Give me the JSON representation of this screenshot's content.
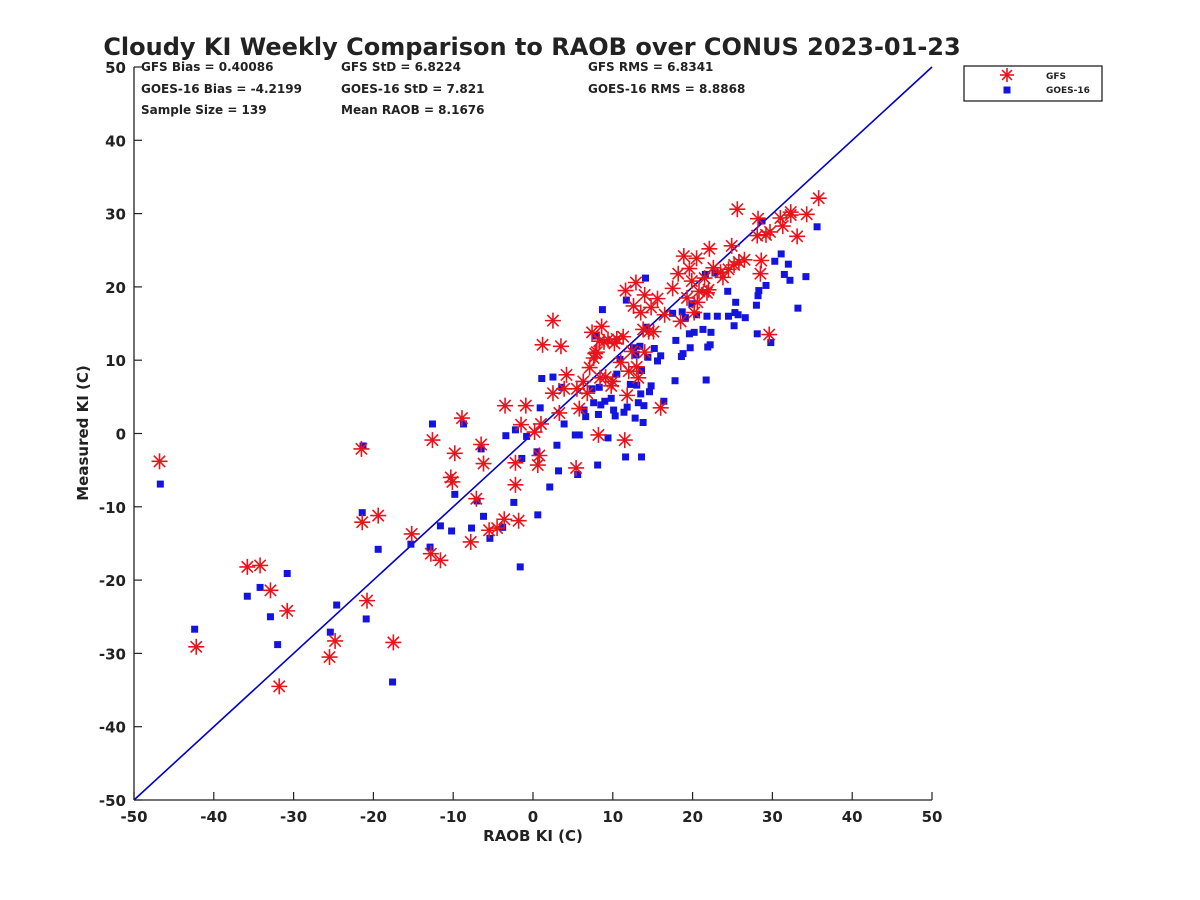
{
  "chart_data": {
    "type": "scatter",
    "title": "Cloudy KI Weekly Comparison to RAOB over CONUS 2023-01-23",
    "xlabel": "RAOB KI (C)",
    "ylabel": "Measured KI (C)",
    "xlim": [
      -50,
      50
    ],
    "ylim": [
      -50,
      50
    ],
    "xticks": [
      "-50",
      "-40",
      "-30",
      "-20",
      "-10",
      "0",
      "10",
      "20",
      "30",
      "40",
      "50"
    ],
    "yticks": [
      "-50",
      "-40",
      "-30",
      "-20",
      "-10",
      "0",
      "10",
      "20",
      "30",
      "40",
      "50"
    ],
    "grid": false,
    "legend_position": "top-right",
    "stats": [
      [
        "GFS Bias = 0.40086",
        "GFS StD = 6.8224",
        "GFS RMS = 6.8341"
      ],
      [
        "GOES-16 Bias = -4.2199",
        "GOES-16 StD = 7.821",
        "GOES-16 RMS = 8.8868"
      ],
      [
        "Sample Size = 139",
        "Mean RAOB = 8.1676"
      ]
    ],
    "reference_line": {
      "x": [
        -50,
        50
      ],
      "y": [
        -50,
        50
      ],
      "color": "#0000cc"
    },
    "series": [
      {
        "name": "GFS",
        "marker": "asterisk",
        "color": "#e8141c",
        "points": [
          [
            -46.8,
            -3.8
          ],
          [
            -42.2,
            -29.1
          ],
          [
            -35.8,
            -18.2
          ],
          [
            -34.2,
            -18
          ],
          [
            -32.9,
            -21.4
          ],
          [
            -31.8,
            -34.5
          ],
          [
            -30.8,
            -24.2
          ],
          [
            -25.5,
            -30.5
          ],
          [
            -24.8,
            -28.3
          ],
          [
            -21.5,
            -2.1
          ],
          [
            -21.4,
            -12.1
          ],
          [
            -20.8,
            -22.8
          ],
          [
            -19.4,
            -11.2
          ],
          [
            -17.5,
            -28.5
          ],
          [
            -15.2,
            -13.7
          ],
          [
            -12.8,
            -16.4
          ],
          [
            -12.6,
            -0.9
          ],
          [
            -11.6,
            -17.3
          ],
          [
            -10.3,
            -6
          ],
          [
            -10.1,
            -6.6
          ],
          [
            -9.8,
            -2.7
          ],
          [
            -8.9,
            2.1
          ],
          [
            -7.8,
            -14.8
          ],
          [
            -7.1,
            -8.9
          ],
          [
            -6.5,
            -1.5
          ],
          [
            -6.2,
            -4.1
          ],
          [
            -5.5,
            -13.2
          ],
          [
            -4.5,
            -12.9
          ],
          [
            -3.6,
            -11.7
          ],
          [
            -3.5,
            3.8
          ],
          [
            -2.2,
            -4
          ],
          [
            -2.2,
            -7
          ],
          [
            -1.8,
            -11.9
          ],
          [
            -1.5,
            1.2
          ],
          [
            -0.9,
            3.8
          ],
          [
            0.2,
            0.2
          ],
          [
            0.6,
            -4.3
          ],
          [
            0.8,
            -3
          ],
          [
            1,
            1.3
          ],
          [
            1.2,
            12.1
          ],
          [
            2.5,
            5.5
          ],
          [
            2.5,
            15.4
          ],
          [
            3.3,
            2.8
          ],
          [
            3.5,
            11.9
          ],
          [
            3.9,
            6.1
          ],
          [
            4.2,
            8
          ],
          [
            5.4,
            -4.7
          ],
          [
            5.5,
            6.1
          ],
          [
            5.8,
            3.4
          ],
          [
            6.3,
            7.1
          ],
          [
            6.8,
            5.5
          ],
          [
            7.1,
            9
          ],
          [
            7.4,
            13.8
          ],
          [
            7.6,
            10.3
          ],
          [
            7.8,
            10.9
          ],
          [
            8,
            11.1
          ],
          [
            8.2,
            -0.2
          ],
          [
            8.3,
            12.6
          ],
          [
            8.4,
            7.6
          ],
          [
            8.6,
            14.6
          ],
          [
            8.9,
            12.5
          ],
          [
            9.1,
            7.7
          ],
          [
            9.4,
            12.8
          ],
          [
            9.8,
            6.5
          ],
          [
            10,
            7.1
          ],
          [
            10.2,
            12.3
          ],
          [
            10.5,
            12.9
          ],
          [
            11,
            9.7
          ],
          [
            11.3,
            13.2
          ],
          [
            11.5,
            -0.9
          ],
          [
            11.6,
            19.5
          ],
          [
            11.8,
            5.2
          ],
          [
            12,
            8.5
          ],
          [
            12.4,
            11.2
          ],
          [
            12.6,
            17.4
          ],
          [
            12.9,
            20.6
          ],
          [
            13,
            9.1
          ],
          [
            13.2,
            7.6
          ],
          [
            13.5,
            16.5
          ],
          [
            13.8,
            14.2
          ],
          [
            14,
            11.1
          ],
          [
            14,
            18.9
          ],
          [
            14.5,
            13.9
          ],
          [
            14.8,
            17.2
          ],
          [
            15.1,
            13.9
          ],
          [
            15.6,
            18.4
          ],
          [
            16,
            3.5
          ],
          [
            16.5,
            16.2
          ],
          [
            17.5,
            19.8
          ],
          [
            18.2,
            21.8
          ],
          [
            18.5,
            15.3
          ],
          [
            18.9,
            24.2
          ],
          [
            19.3,
            18.5
          ],
          [
            19.6,
            22.5
          ],
          [
            19.9,
            20.8
          ],
          [
            20.2,
            16.5
          ],
          [
            20.5,
            23.9
          ],
          [
            20.6,
            17.9
          ],
          [
            20.8,
            19.4
          ],
          [
            21.5,
            21.2
          ],
          [
            21.8,
            19.2
          ],
          [
            22,
            19.6
          ],
          [
            22.1,
            25.2
          ],
          [
            22.6,
            22.6
          ],
          [
            23.5,
            22
          ],
          [
            23.8,
            21.3
          ],
          [
            24.5,
            22.4
          ],
          [
            24.9,
            25.6
          ],
          [
            25.2,
            23
          ],
          [
            25.6,
            30.6
          ],
          [
            25.8,
            23.4
          ],
          [
            26.5,
            23.7
          ],
          [
            28.1,
            27
          ],
          [
            28.2,
            29.3
          ],
          [
            28.5,
            21.8
          ],
          [
            28.6,
            23.6
          ],
          [
            29.2,
            27.1
          ],
          [
            29.6,
            13.5
          ],
          [
            29.7,
            27.5
          ],
          [
            31,
            29.4
          ],
          [
            31.3,
            28.3
          ],
          [
            32.3,
            29.8
          ],
          [
            32.3,
            30.2
          ],
          [
            33.1,
            26.9
          ],
          [
            34.3,
            29.9
          ],
          [
            35.8,
            32.1
          ]
        ]
      },
      {
        "name": "GOES-16",
        "marker": "square",
        "color": "#1414e0",
        "points": [
          [
            -46.7,
            -6.9
          ],
          [
            -42.4,
            -26.7
          ],
          [
            -35.8,
            -22.2
          ],
          [
            -34.2,
            -21
          ],
          [
            -32.9,
            -25
          ],
          [
            -32,
            -28.8
          ],
          [
            -30.8,
            -19.1
          ],
          [
            -25.4,
            -27.1
          ],
          [
            -24.6,
            -23.4
          ],
          [
            -21.4,
            -10.8
          ],
          [
            -21.3,
            -1.7
          ],
          [
            -20.9,
            -25.3
          ],
          [
            -19.4,
            -15.8
          ],
          [
            -17.6,
            -33.9
          ],
          [
            -15.3,
            -15.1
          ],
          [
            -12.9,
            -15.5
          ],
          [
            -12.6,
            1.3
          ],
          [
            -11.6,
            -12.6
          ],
          [
            -10.2,
            -13.3
          ],
          [
            -9.8,
            -8.3
          ],
          [
            -8.7,
            1.3
          ],
          [
            -7.7,
            -12.9
          ],
          [
            -7,
            -9.2
          ],
          [
            -6.5,
            -2.1
          ],
          [
            -6.2,
            -11.3
          ],
          [
            -5.4,
            -14.3
          ],
          [
            -3.8,
            -12.8
          ],
          [
            -3.4,
            -0.3
          ],
          [
            -2.4,
            -9.4
          ],
          [
            -2.2,
            0.5
          ],
          [
            -1.6,
            -18.2
          ],
          [
            -1.4,
            -3.4
          ],
          [
            -0.8,
            -0.4
          ],
          [
            0.5,
            -2.5
          ],
          [
            0.6,
            -11.1
          ],
          [
            0.9,
            3.5
          ],
          [
            1.1,
            7.5
          ],
          [
            2.1,
            -7.3
          ],
          [
            2.5,
            7.7
          ],
          [
            3,
            -1.6
          ],
          [
            3.2,
            -5.1
          ],
          [
            3.6,
            6.3
          ],
          [
            3.9,
            1.3
          ],
          [
            5.3,
            -0.2
          ],
          [
            5.6,
            -5.6
          ],
          [
            5.8,
            -0.2
          ],
          [
            6.4,
            3.2
          ],
          [
            6.6,
            2.3
          ],
          [
            7.4,
            6.1
          ],
          [
            7.6,
            4.2
          ],
          [
            7.8,
            13.3
          ],
          [
            8.1,
            -4.3
          ],
          [
            8.2,
            2.6
          ],
          [
            8.3,
            6.3
          ],
          [
            8.5,
            3.9
          ],
          [
            8.7,
            16.9
          ],
          [
            9,
            4.4
          ],
          [
            9.4,
            -0.6
          ],
          [
            9.8,
            4.8
          ],
          [
            10.1,
            3.2
          ],
          [
            10.3,
            2.4
          ],
          [
            10.5,
            8.1
          ],
          [
            10.9,
            10.1
          ],
          [
            11.4,
            2.9
          ],
          [
            11.6,
            -3.2
          ],
          [
            11.7,
            18.2
          ],
          [
            11.8,
            3.6
          ],
          [
            12.2,
            6.7
          ],
          [
            12.6,
            11.7
          ],
          [
            12.8,
            2.1
          ],
          [
            12.9,
            10.7
          ],
          [
            13,
            6.6
          ],
          [
            13.2,
            4.2
          ],
          [
            13.4,
            11.9
          ],
          [
            13.5,
            5.4
          ],
          [
            13.6,
            8.6
          ],
          [
            13.6,
            -3.2
          ],
          [
            13.8,
            1.5
          ],
          [
            13.9,
            3.8
          ],
          [
            14.1,
            21.2
          ],
          [
            14.2,
            14.5
          ],
          [
            14.4,
            10.4
          ],
          [
            14.6,
            5.7
          ],
          [
            14.8,
            6.5
          ],
          [
            15.2,
            11.6
          ],
          [
            15.6,
            9.9
          ],
          [
            16,
            10.6
          ],
          [
            16.4,
            4.4
          ],
          [
            17.5,
            16.4
          ],
          [
            17.8,
            7.2
          ],
          [
            17.9,
            12.7
          ],
          [
            18.6,
            10.5
          ],
          [
            18.7,
            16.6
          ],
          [
            18.8,
            10.9
          ],
          [
            19.1,
            15.8
          ],
          [
            19.6,
            13.6
          ],
          [
            19.7,
            11.7
          ],
          [
            19.9,
            17.7
          ],
          [
            20.2,
            13.8
          ],
          [
            20.5,
            16.2
          ],
          [
            21.3,
            14.2
          ],
          [
            21.6,
            21.7
          ],
          [
            21.7,
            7.3
          ],
          [
            21.8,
            16
          ],
          [
            21.9,
            11.8
          ],
          [
            22.2,
            12.1
          ],
          [
            22.3,
            13.8
          ],
          [
            22.8,
            21.9
          ],
          [
            23.1,
            16
          ],
          [
            24.4,
            19.4
          ],
          [
            24.5,
            16
          ],
          [
            25.2,
            14.7
          ],
          [
            25.3,
            16.5
          ],
          [
            25.4,
            17.9
          ],
          [
            25.7,
            16.2
          ],
          [
            26.6,
            15.8
          ],
          [
            28,
            17.5
          ],
          [
            28.1,
            13.6
          ],
          [
            28.2,
            18.8
          ],
          [
            28.3,
            19.5
          ],
          [
            28.7,
            29
          ],
          [
            29.2,
            20.2
          ],
          [
            29.8,
            12.4
          ],
          [
            30.3,
            23.5
          ],
          [
            31.1,
            24.5
          ],
          [
            31.5,
            21.7
          ],
          [
            32,
            23.1
          ],
          [
            32.2,
            20.9
          ],
          [
            33.2,
            17.1
          ],
          [
            34.2,
            21.4
          ],
          [
            35.6,
            28.2
          ]
        ]
      }
    ]
  }
}
